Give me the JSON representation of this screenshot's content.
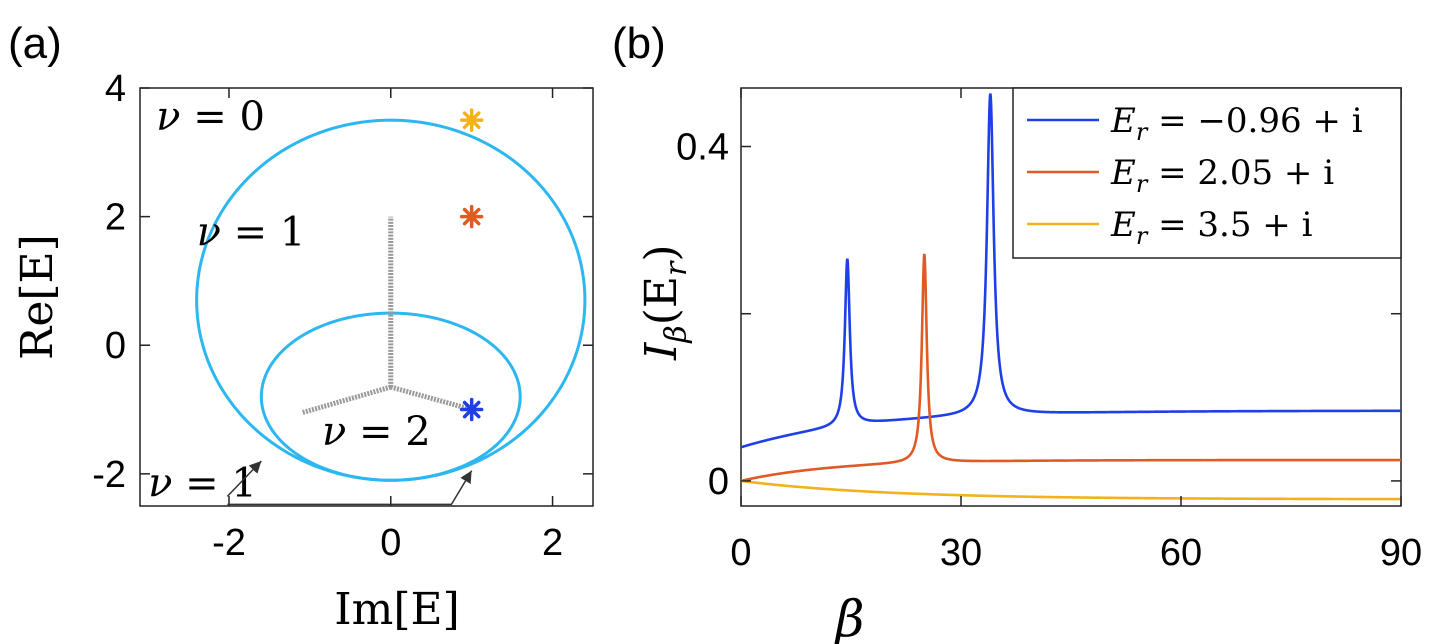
{
  "chart_data": [
    {
      "panel_label": "(a)",
      "type": "line",
      "xlabel": "Im[E]",
      "ylabel": "Re[E]",
      "xlim": [
        -3.1,
        2.5
      ],
      "ylim": [
        -2.5,
        4
      ],
      "xticks": [
        -2,
        0,
        2
      ],
      "yticks": [
        -2,
        0,
        2,
        4
      ],
      "xtick_labels": [
        "-2",
        "0",
        "2"
      ],
      "ytick_labels": [
        "-2",
        "0",
        "2",
        "4"
      ],
      "grid": false,
      "curves": {
        "large_loop": {
          "color": "#2db7f0",
          "center": [
            0,
            0.7
          ],
          "semi_axes": [
            2.4,
            2.8
          ]
        },
        "small_loop": {
          "color": "#2db7f0",
          "center": [
            0,
            -0.8
          ],
          "semi_axes": [
            1.6,
            1.3
          ]
        },
        "spectrum_branches": {
          "color": "#9a9a9a",
          "hub": [
            0,
            -0.65
          ],
          "ends": [
            [
              0,
              2.0
            ],
            [
              -1.1,
              -1.05
            ],
            [
              1.0,
              -1.0
            ]
          ]
        }
      },
      "markers": [
        {
          "x": 1.0,
          "y": 3.5,
          "color": "#f1b21a",
          "symbol": "asterisk"
        },
        {
          "x": 1.0,
          "y": 2.0,
          "color": "#e05a24",
          "symbol": "asterisk"
        },
        {
          "x": 1.0,
          "y": -1.0,
          "color": "#1f3fe8",
          "symbol": "asterisk"
        }
      ],
      "annotations": [
        {
          "lhs": "ν",
          "rhs": "0",
          "x": -2.9,
          "y": 3.35
        },
        {
          "lhs": "ν",
          "rhs": "1",
          "x": -2.4,
          "y": 1.55
        },
        {
          "lhs": "ν",
          "rhs": "2",
          "x": -0.85,
          "y": -1.55
        },
        {
          "lhs": "ν",
          "rhs": "1",
          "x": -3.0,
          "y": -2.35
        }
      ]
    },
    {
      "panel_label": "(b)",
      "type": "line",
      "xlabel": "β",
      "ylabel_main": "I",
      "ylabel_sub": "β",
      "ylabel_arg": "(E",
      "ylabel_arg_sub": "r",
      "ylabel_close": ")",
      "xlim": [
        0,
        90
      ],
      "ylim": [
        -0.03,
        0.47
      ],
      "xticks": [
        0,
        30,
        60,
        90
      ],
      "xtick_labels": [
        "0",
        "30",
        "60",
        "90"
      ],
      "yticks": [
        0,
        0.4
      ],
      "ytick_labels": [
        "0",
        "0.4"
      ],
      "minor_yticks": [
        0.2
      ],
      "grid": false,
      "legend": "top-right",
      "series": [
        {
          "name": "E = −0.96 + i",
          "name_sym": "E",
          "name_sub": "r",
          "name_rhs": "= −0.96 + i",
          "color": "#1f3fe8",
          "baseline": {
            "start": 0.04,
            "end": 0.084,
            "k": 0.06
          },
          "peaks": [
            {
              "x0": 14.5,
              "height": 0.2,
              "gamma": 0.4
            },
            {
              "x0": 34.0,
              "height": 0.385,
              "gamma": 0.55
            }
          ]
        },
        {
          "name": "E = 2.05 + i",
          "name_sym": "E",
          "name_sub": "r",
          "name_rhs": "= 2.05 + i",
          "color": "#e05a24",
          "baseline": {
            "start": 0.0,
            "end": 0.025,
            "k": 0.08
          },
          "peaks": [
            {
              "x0": 25.0,
              "height": 0.25,
              "gamma": 0.4
            }
          ]
        },
        {
          "name": "E = 3.5 + i",
          "name_sym": "E",
          "name_sub": "r",
          "name_rhs": "= 3.5 + i",
          "color": "#f1b21a",
          "baseline": {
            "start": 0.0,
            "end": -0.022,
            "k": 0.05
          },
          "peaks": []
        }
      ]
    }
  ]
}
